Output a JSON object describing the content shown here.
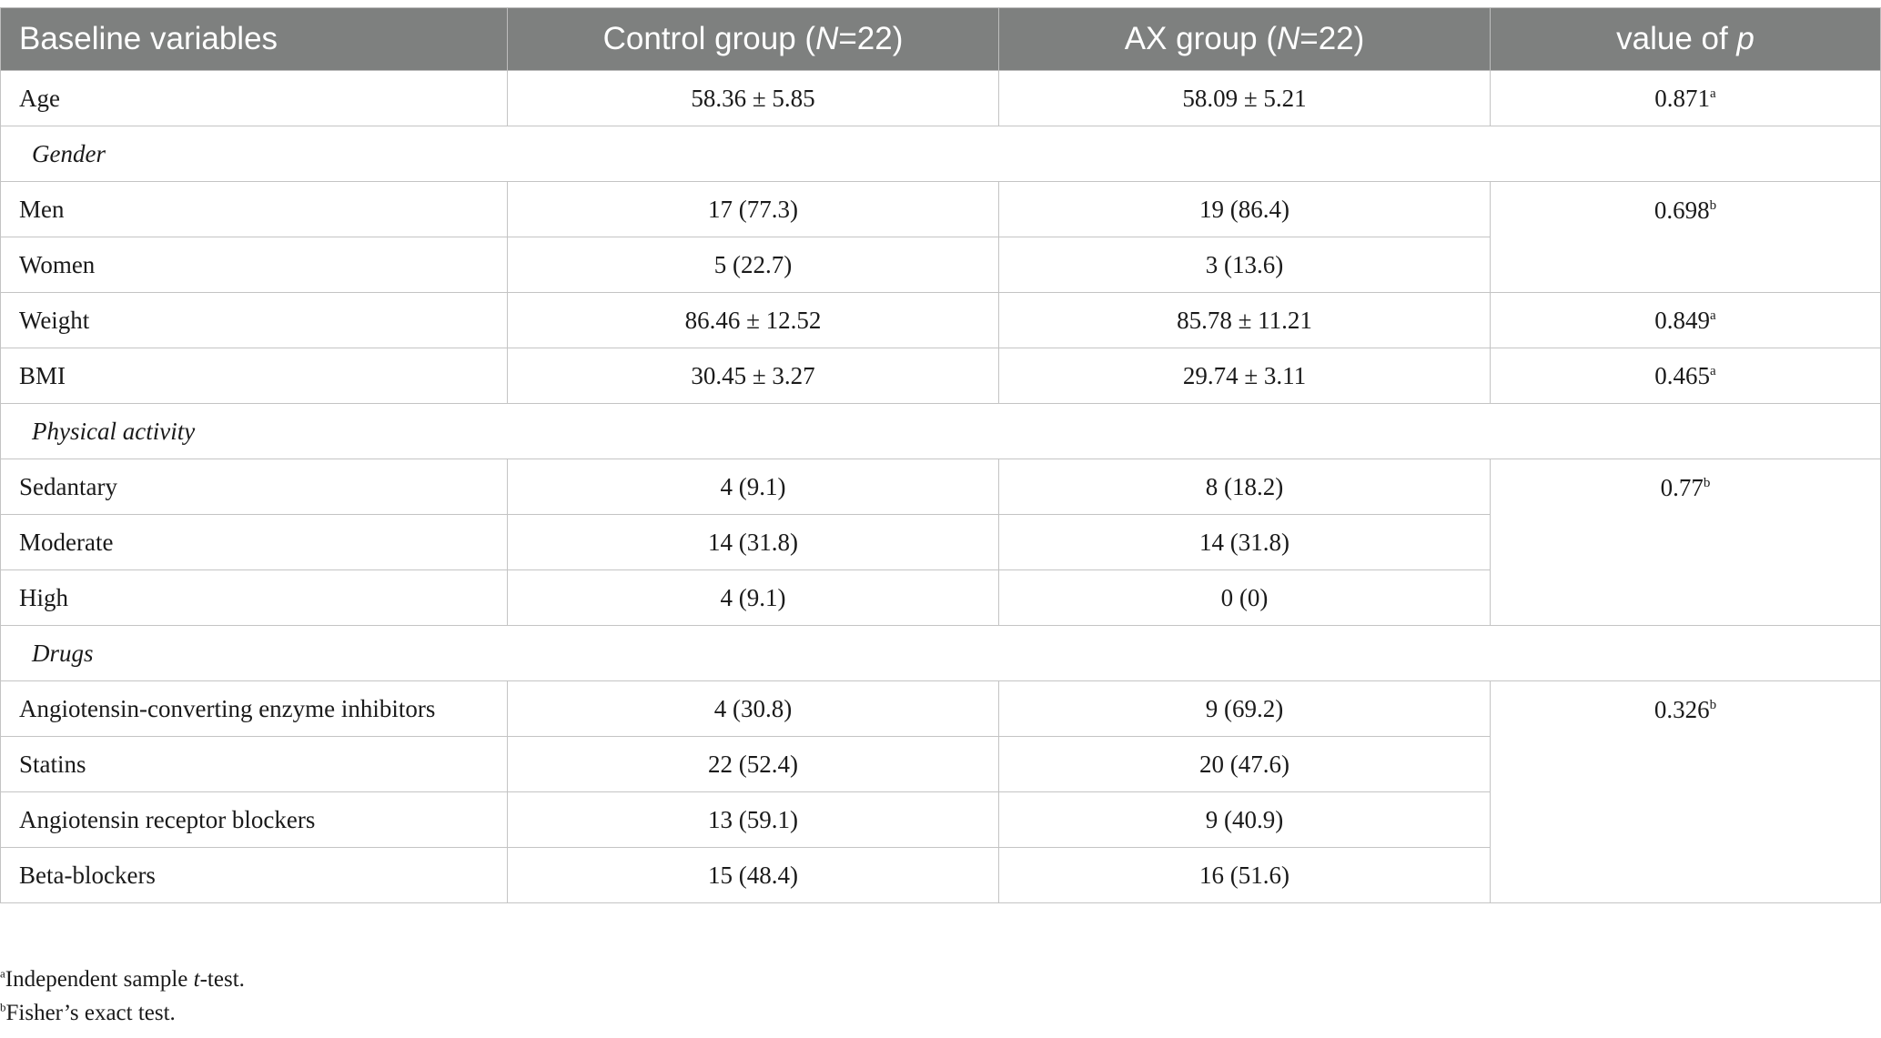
{
  "table": {
    "header": {
      "col1": "Baseline variables",
      "col2_prefix": "Control group (",
      "col2_n": "N",
      "col2_suffix": "=22)",
      "col3_prefix": "AX group (",
      "col3_n": "N",
      "col3_suffix": "=22)",
      "col4_prefix": "value of ",
      "col4_p": "p"
    },
    "rows": {
      "age": {
        "label": "Age",
        "control": "58.36 ± 5.85",
        "ax": "58.09 ± 5.21",
        "p": "0.871",
        "sup": "a"
      },
      "gender": {
        "label": "Gender"
      },
      "men": {
        "label": "Men",
        "control": "17 (77.3)",
        "ax": "19 (86.4)",
        "p": "0.698",
        "sup": "b"
      },
      "women": {
        "label": "Women",
        "control": "5 (22.7)",
        "ax": "3 (13.6)"
      },
      "weight": {
        "label": "Weight",
        "control": "86.46 ± 12.52",
        "ax": "85.78 ± 11.21",
        "p": "0.849",
        "sup": "a"
      },
      "bmi": {
        "label": "BMI",
        "control": "30.45 ± 3.27",
        "ax": "29.74 ± 3.11",
        "p": "0.465",
        "sup": "a"
      },
      "physical": {
        "label": "Physical activity"
      },
      "sedantary": {
        "label": "Sedantary",
        "control": "4 (9.1)",
        "ax": "8 (18.2)",
        "p": "0.77",
        "sup": "b"
      },
      "moderate": {
        "label": "Moderate",
        "control": "14 (31.8)",
        "ax": "14 (31.8)"
      },
      "high": {
        "label": "High",
        "control": "4 (9.1)",
        "ax": "0 (0)"
      },
      "drugs": {
        "label": "Drugs"
      },
      "ace": {
        "label": "Angiotensin-converting enzyme inhibitors",
        "control": "4 (30.8)",
        "ax": "9 (69.2)",
        "p": "0.326",
        "sup": "b"
      },
      "statins": {
        "label": "Statins",
        "control": "22 (52.4)",
        "ax": "20 (47.6)"
      },
      "arb": {
        "label": "Angiotensin receptor blockers",
        "control": "13 (59.1)",
        "ax": "9 (40.9)"
      },
      "beta": {
        "label": "Beta-blockers",
        "control": "15 (48.4)",
        "ax": "16 (51.6)"
      }
    }
  },
  "footnotes": {
    "a": {
      "mark": "a",
      "prefix": "Independent sample ",
      "italic": "t",
      "suffix": "-test."
    },
    "b": {
      "mark": "b",
      "text": "Fisher’s exact test."
    }
  }
}
